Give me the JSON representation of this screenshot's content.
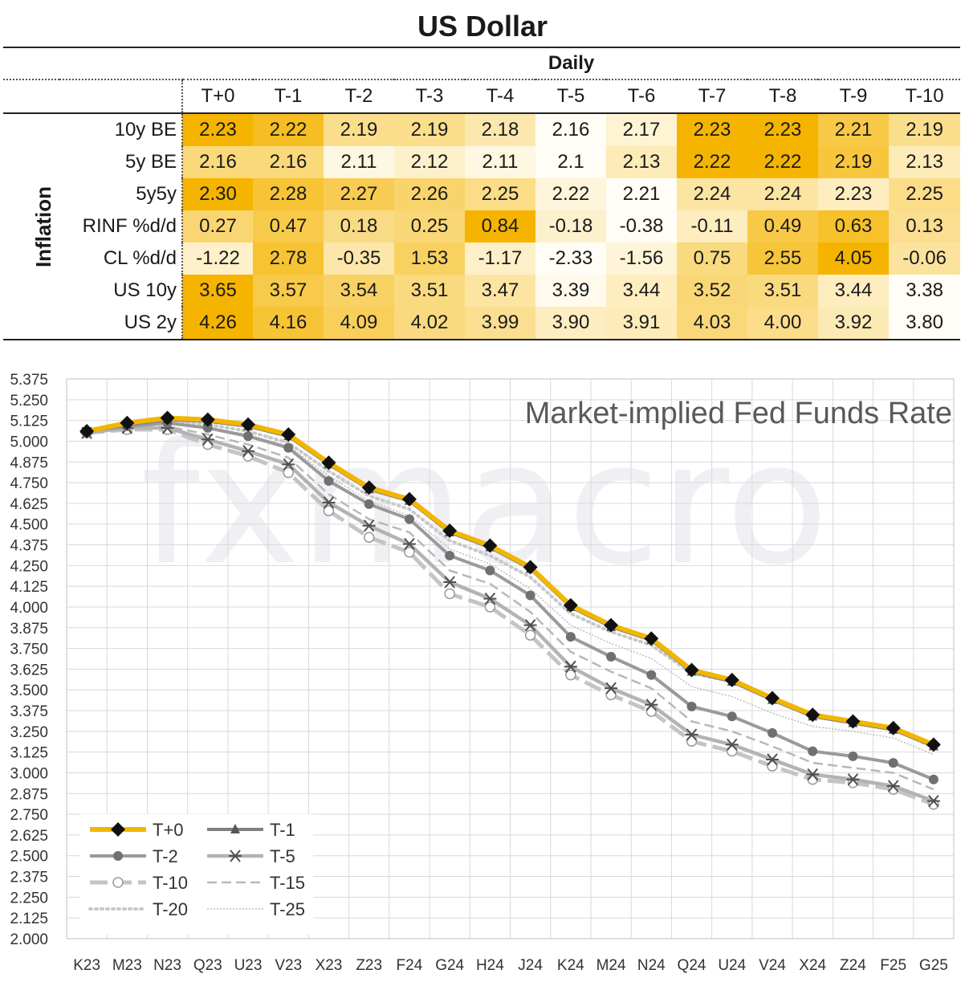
{
  "header": {
    "title": "US Dollar",
    "subtitle": "Daily"
  },
  "table": {
    "group_label": "Inflation",
    "columns": [
      "T+0",
      "T-1",
      "T-2",
      "T-3",
      "T-4",
      "T-5",
      "T-6",
      "T-7",
      "T-8",
      "T-9",
      "T-10"
    ],
    "rows": [
      {
        "label": "10y BE",
        "values": [
          "2.23",
          "2.22",
          "2.19",
          "2.19",
          "2.18",
          "2.16",
          "2.17",
          "2.23",
          "2.23",
          "2.21",
          "2.19"
        ]
      },
      {
        "label": "5y BE",
        "values": [
          "2.16",
          "2.16",
          "2.11",
          "2.12",
          "2.11",
          "2.1",
          "2.13",
          "2.22",
          "2.22",
          "2.19",
          "2.13"
        ]
      },
      {
        "label": "5y5y",
        "values": [
          "2.30",
          "2.28",
          "2.27",
          "2.26",
          "2.25",
          "2.22",
          "2.21",
          "2.24",
          "2.24",
          "2.23",
          "2.25"
        ]
      },
      {
        "label": "RINF %d/d",
        "values": [
          "0.27",
          "0.47",
          "0.18",
          "0.25",
          "0.84",
          "-0.18",
          "-0.38",
          "-0.11",
          "0.49",
          "0.63",
          "0.13"
        ]
      },
      {
        "label": "CL %d/d",
        "values": [
          "-1.22",
          "2.78",
          "-0.35",
          "1.53",
          "-1.17",
          "-2.33",
          "-1.56",
          "0.75",
          "2.55",
          "4.05",
          "-0.06"
        ]
      },
      {
        "label": "US 10y",
        "values": [
          "3.65",
          "3.57",
          "3.54",
          "3.51",
          "3.47",
          "3.39",
          "3.44",
          "3.52",
          "3.51",
          "3.44",
          "3.38"
        ]
      },
      {
        "label": "US 2y",
        "values": [
          "4.26",
          "4.16",
          "4.09",
          "4.02",
          "3.99",
          "3.90",
          "3.91",
          "4.03",
          "4.00",
          "3.92",
          "3.80"
        ]
      }
    ],
    "heat_colors": {
      "low": "#fffdf5",
      "high": "#f5b400"
    }
  },
  "chart_data": {
    "type": "line",
    "title": "Market-implied Fed Funds Rate",
    "ylim": [
      2.0,
      5.375
    ],
    "yticks": [
      "2.000",
      "2.125",
      "2.250",
      "2.375",
      "2.500",
      "2.625",
      "2.750",
      "2.875",
      "3.000",
      "3.125",
      "3.250",
      "3.375",
      "3.500",
      "3.625",
      "3.750",
      "3.875",
      "4.000",
      "4.125",
      "4.250",
      "4.375",
      "4.500",
      "4.625",
      "4.750",
      "4.875",
      "5.000",
      "5.125",
      "5.250",
      "5.375"
    ],
    "categories": [
      "K23",
      "M23",
      "N23",
      "Q23",
      "U23",
      "V23",
      "X23",
      "Z23",
      "F24",
      "G24",
      "H24",
      "J24",
      "K24",
      "M24",
      "N24",
      "Q24",
      "U24",
      "V24",
      "X24",
      "Z24",
      "F25",
      "G25"
    ],
    "grid": true,
    "legend_position": "bottom-left",
    "watermark": "fxmacro",
    "series": [
      {
        "name": "T+0",
        "color": "#f2b600",
        "marker": "diamond",
        "values": [
          5.06,
          5.11,
          5.14,
          5.13,
          5.1,
          5.04,
          4.87,
          4.72,
          4.65,
          4.46,
          4.37,
          4.24,
          4.01,
          3.89,
          3.81,
          3.62,
          3.56,
          3.45,
          3.35,
          3.31,
          3.27,
          3.17
        ]
      },
      {
        "name": "T-1",
        "color": "#808080",
        "marker": "triangle",
        "values": [
          5.06,
          5.1,
          5.13,
          5.12,
          5.09,
          5.03,
          4.86,
          4.71,
          4.64,
          4.45,
          4.36,
          4.23,
          4.0,
          3.88,
          3.8,
          3.61,
          3.55,
          3.44,
          3.34,
          3.3,
          3.26,
          3.16
        ]
      },
      {
        "name": "T-2",
        "color": "#9a9a9a",
        "marker": "circle",
        "values": [
          5.06,
          5.09,
          5.11,
          5.08,
          5.03,
          4.96,
          4.76,
          4.62,
          4.53,
          4.31,
          4.22,
          4.07,
          3.82,
          3.7,
          3.59,
          3.4,
          3.34,
          3.24,
          3.13,
          3.1,
          3.06,
          2.96
        ]
      },
      {
        "name": "T-5",
        "color": "#b3b3b3",
        "marker": "star",
        "values": [
          5.05,
          5.08,
          5.08,
          5.01,
          4.94,
          4.86,
          4.63,
          4.49,
          4.38,
          4.15,
          4.05,
          3.89,
          3.64,
          3.51,
          3.41,
          3.23,
          3.17,
          3.08,
          2.99,
          2.96,
          2.92,
          2.83
        ]
      },
      {
        "name": "T-10",
        "color": "#c4c4c4",
        "marker": "open-circle",
        "values": [
          5.05,
          5.07,
          5.07,
          4.98,
          4.91,
          4.81,
          4.58,
          4.42,
          4.33,
          4.08,
          4.0,
          3.83,
          3.59,
          3.47,
          3.37,
          3.19,
          3.13,
          3.04,
          2.96,
          2.94,
          2.9,
          2.81
        ]
      },
      {
        "name": "T-15",
        "color": "#b8b8b8",
        "marker": "dash",
        "values": [
          5.05,
          5.08,
          5.09,
          5.04,
          4.98,
          4.9,
          4.68,
          4.53,
          4.45,
          4.22,
          4.14,
          3.97,
          3.73,
          3.61,
          3.51,
          3.31,
          3.25,
          3.16,
          3.06,
          3.03,
          3.0,
          2.9
        ]
      },
      {
        "name": "T-20",
        "color": "#c8c8c8",
        "marker": "dot",
        "values": [
          5.06,
          5.09,
          5.12,
          5.1,
          5.06,
          4.99,
          4.82,
          4.67,
          4.59,
          4.4,
          4.31,
          4.18,
          3.96,
          3.85,
          3.77,
          3.6,
          3.55,
          3.44,
          3.35,
          3.31,
          3.27,
          3.15
        ]
      },
      {
        "name": "T-25",
        "color": "#bcbcbc",
        "marker": "fine-dot",
        "values": [
          5.06,
          5.09,
          5.11,
          5.08,
          5.04,
          4.97,
          4.79,
          4.64,
          4.55,
          4.35,
          4.26,
          4.11,
          3.89,
          3.78,
          3.69,
          3.52,
          3.46,
          3.36,
          3.28,
          3.25,
          3.21,
          3.11
        ]
      }
    ]
  }
}
